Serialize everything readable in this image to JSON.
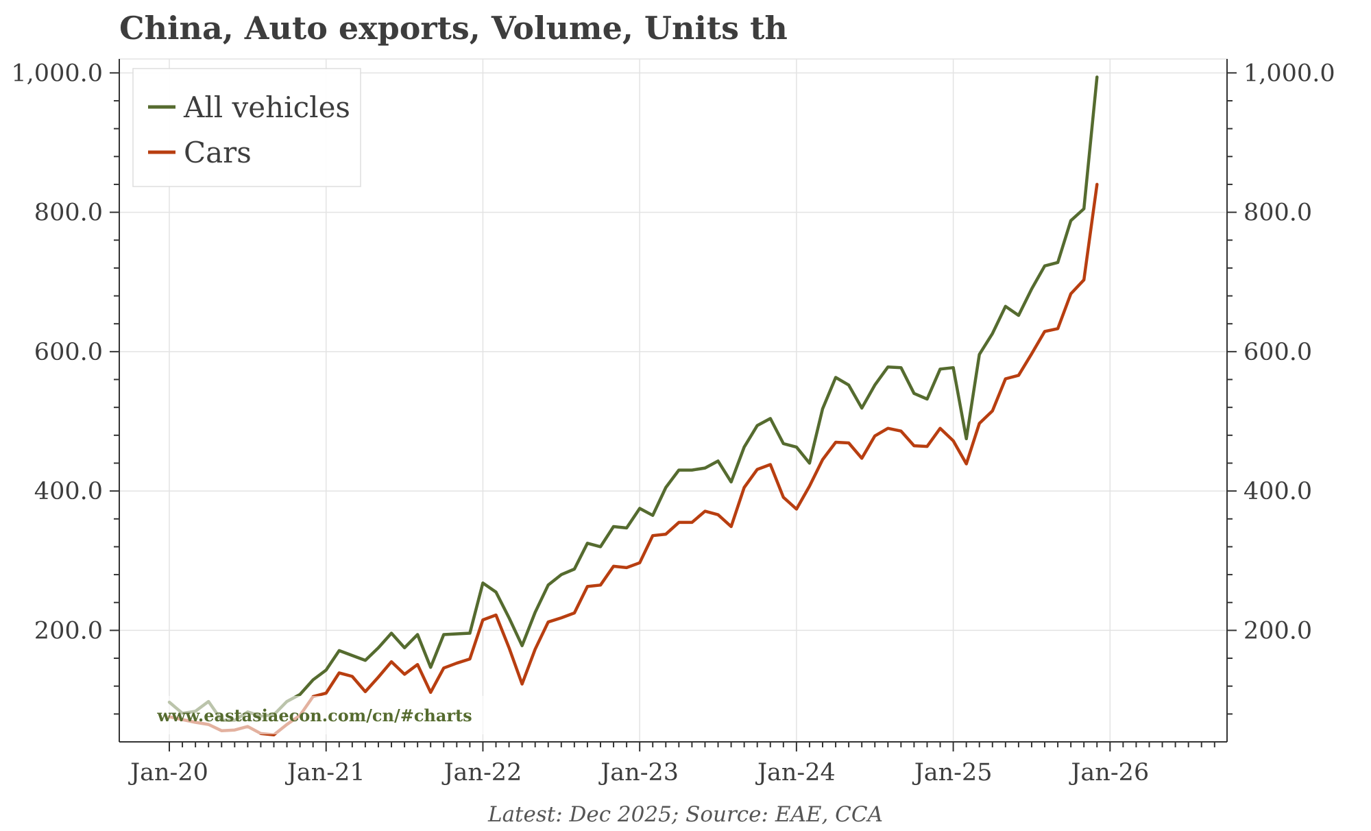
{
  "title": "China, Auto exports, Volume, Units th",
  "source": "Latest: Dec 2025; Source: EAE, CCA",
  "watermark": "www.eastasiaecon.com/cn/#charts",
  "colors": {
    "all_vehicles": "#556b2f",
    "cars": "#b83e10",
    "watermark": "#556b2f",
    "grid": "#e3e3e3",
    "axis": "#333333"
  },
  "chart_data": {
    "type": "line",
    "title": "China, Auto exports, Volume, Units th",
    "xlabel": "",
    "ylabel": "",
    "x_ticks": [
      "Jan-20",
      "Jan-21",
      "Jan-22",
      "Jan-23",
      "Jan-24",
      "Jan-25",
      "Jan-26"
    ],
    "x_range": [
      "Jan-20",
      "Sep-26"
    ],
    "y_ticks": [
      "200.0",
      "400.0",
      "600.0",
      "800.0",
      "1,000.0"
    ],
    "y_tick_values": [
      200,
      400,
      600,
      800,
      1000
    ],
    "ylim": [
      40,
      1020
    ],
    "dual_y_axis_mirrored": true,
    "grid": true,
    "legend_position": "top-left",
    "x": [
      "Jan-20",
      "Feb-20",
      "Mar-20",
      "Apr-20",
      "May-20",
      "Jun-20",
      "Jul-20",
      "Aug-20",
      "Sep-20",
      "Oct-20",
      "Nov-20",
      "Dec-20",
      "Jan-21",
      "Feb-21",
      "Mar-21",
      "Apr-21",
      "May-21",
      "Jun-21",
      "Jul-21",
      "Aug-21",
      "Sep-21",
      "Oct-21",
      "Nov-21",
      "Dec-21",
      "Jan-22",
      "Feb-22",
      "Mar-22",
      "Apr-22",
      "May-22",
      "Jun-22",
      "Jul-22",
      "Aug-22",
      "Sep-22",
      "Oct-22",
      "Nov-22",
      "Dec-22",
      "Jan-23",
      "Feb-23",
      "Mar-23",
      "Apr-23",
      "May-23",
      "Jun-23",
      "Jul-23",
      "Aug-23",
      "Sep-23",
      "Oct-23",
      "Nov-23",
      "Dec-23",
      "Jan-24",
      "Feb-24",
      "Mar-24",
      "Apr-24",
      "May-24",
      "Jun-24",
      "Jul-24",
      "Aug-24",
      "Sep-24",
      "Oct-24",
      "Nov-24",
      "Dec-24",
      "Jan-25",
      "Feb-25",
      "Mar-25",
      "Apr-25",
      "May-25",
      "Jun-25",
      "Jul-25",
      "Aug-25",
      "Sep-25",
      "Oct-25",
      "Nov-25",
      "Dec-25"
    ],
    "series": [
      {
        "name": "All vehicles",
        "color": "#556b2f",
        "values": [
          97,
          81,
          84,
          98,
          71,
          71,
          83,
          77,
          79,
          98,
          108,
          129,
          143,
          171,
          164,
          157,
          175,
          196,
          175,
          194,
          147,
          194,
          195,
          196,
          268,
          255,
          218,
          178,
          226,
          265,
          280,
          288,
          325,
          320,
          349,
          347,
          375,
          365,
          405,
          430,
          430,
          433,
          443,
          413,
          463,
          494,
          504,
          468,
          463,
          440,
          518,
          563,
          552,
          519,
          552,
          578,
          577,
          540,
          532,
          575,
          577,
          475,
          596,
          626,
          665,
          652,
          690,
          723,
          728,
          788,
          805,
          994
        ]
      },
      {
        "name": "Cars",
        "color": "#b83e10",
        "values": [
          76,
          72,
          68,
          65,
          56,
          57,
          62,
          52,
          50,
          65,
          78,
          105,
          110,
          139,
          134,
          112,
          133,
          155,
          137,
          151,
          111,
          146,
          153,
          159,
          215,
          222,
          175,
          123,
          173,
          212,
          218,
          225,
          263,
          265,
          292,
          290,
          297,
          336,
          338,
          355,
          355,
          371,
          366,
          349,
          405,
          431,
          438,
          391,
          374,
          407,
          445,
          470,
          469,
          447,
          479,
          490,
          486,
          465,
          464,
          490,
          472,
          439,
          497,
          515,
          561,
          566,
          597,
          629,
          633,
          683,
          703,
          840
        ]
      }
    ]
  }
}
